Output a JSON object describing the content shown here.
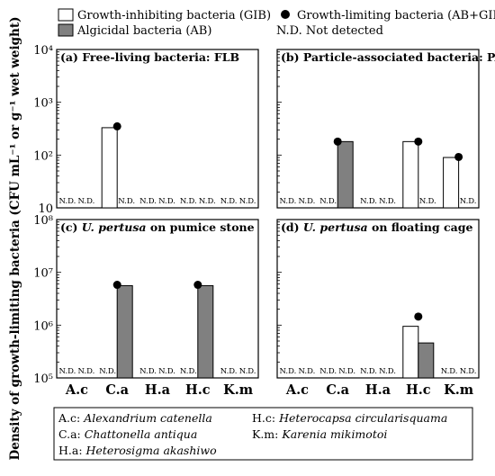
{
  "legend": {
    "gib_label": "Growth-inhibiting bacteria (GIB)",
    "ab_label": "Algicidal bacteria (AB)",
    "glb_label": "Growth-limiting bacteria (AB+GIB)",
    "nd_label": "N.D.  Not detected",
    "colors": {
      "gib": "#ffffff",
      "ab": "#808080",
      "dot": "#000000"
    }
  },
  "ylabel": "Density of growth-limiting bacteria (CFU mL⁻¹ or g⁻¹ wet weight)",
  "nd_text": "N.D.",
  "categories": [
    "A.c",
    "C.a",
    "H.a",
    "H.c",
    "K.m"
  ],
  "species_key": [
    {
      "abbr": "A.c:",
      "name": "Alexandrium catenella"
    },
    {
      "abbr": "H.c:",
      "name": "Heterocapsa circularisquama"
    },
    {
      "abbr": "C.a:",
      "name": "Chattonella antiqua"
    },
    {
      "abbr": "K.m:",
      "name": "Karenia mikimotoi"
    },
    {
      "abbr": "H.a:",
      "name": "Heterosigma akashiwo"
    }
  ],
  "chart_data": [
    {
      "type": "bar",
      "title_prefix": "(a) Free-living bacteria: FLB",
      "title_italic": "",
      "title_suffix": "",
      "yscale": "log",
      "ylim": [
        10,
        10000
      ],
      "yticks": [
        {
          "value": 10,
          "label": "10"
        },
        {
          "value": 100,
          "label": "10²"
        },
        {
          "value": 1000,
          "label": "10³"
        },
        {
          "value": 10000,
          "label": "10⁴"
        }
      ],
      "series": [
        {
          "name": "Growth-inhibiting bacteria (GIB)",
          "values": [
            null,
            330,
            null,
            null,
            null
          ]
        },
        {
          "name": "Algicidal bacteria (AB)",
          "values": [
            null,
            null,
            null,
            null,
            null
          ]
        },
        {
          "name": "Growth-limiting bacteria (AB+GIB)",
          "values": [
            null,
            350,
            null,
            null,
            null
          ]
        }
      ],
      "nd": [
        [
          true,
          true
        ],
        [
          false,
          true
        ],
        [
          true,
          true
        ],
        [
          true,
          true
        ],
        [
          true,
          true
        ]
      ]
    },
    {
      "type": "bar",
      "title_prefix": "(b) Particle-associated bacteria: PAB",
      "title_italic": "",
      "title_suffix": "",
      "yscale": "log",
      "ylim": [
        10,
        10000
      ],
      "yticks": [],
      "series": [
        {
          "name": "Growth-inhibiting bacteria (GIB)",
          "values": [
            null,
            null,
            null,
            180,
            90
          ]
        },
        {
          "name": "Algicidal bacteria (AB)",
          "values": [
            null,
            180,
            null,
            null,
            null
          ]
        },
        {
          "name": "Growth-limiting bacteria (AB+GIB)",
          "values": [
            null,
            180,
            null,
            180,
            92
          ]
        }
      ],
      "nd": [
        [
          true,
          true
        ],
        [
          true,
          false
        ],
        [
          true,
          true
        ],
        [
          false,
          true
        ],
        [
          false,
          true
        ]
      ]
    },
    {
      "type": "bar",
      "title_prefix": "(c) ",
      "title_italic": "U. pertusa",
      "title_suffix": " on pumice stone",
      "yscale": "log",
      "ylim": [
        100000,
        100000000
      ],
      "yticks": [
        {
          "value": 100000,
          "label": "10⁵"
        },
        {
          "value": 1000000,
          "label": "10⁶"
        },
        {
          "value": 10000000,
          "label": "10⁷"
        },
        {
          "value": 100000000,
          "label": "10⁸"
        }
      ],
      "series": [
        {
          "name": "Growth-inhibiting bacteria (GIB)",
          "values": [
            null,
            null,
            null,
            null,
            null
          ]
        },
        {
          "name": "Algicidal bacteria (AB)",
          "values": [
            null,
            5600000,
            null,
            5600000,
            null
          ]
        },
        {
          "name": "Growth-limiting bacteria (AB+GIB)",
          "values": [
            null,
            5800000,
            null,
            5800000,
            null
          ]
        }
      ],
      "nd": [
        [
          true,
          true
        ],
        [
          true,
          false
        ],
        [
          true,
          true
        ],
        [
          true,
          false
        ],
        [
          true,
          true
        ]
      ]
    },
    {
      "type": "bar",
      "title_prefix": "(d) ",
      "title_italic": "U. pertusa",
      "title_suffix": " on floating cage",
      "yscale": "log",
      "ylim": [
        100000,
        100000000
      ],
      "yticks": [],
      "series": [
        {
          "name": "Growth-inhibiting bacteria (GIB)",
          "values": [
            null,
            null,
            null,
            950000,
            null
          ]
        },
        {
          "name": "Algicidal bacteria (AB)",
          "values": [
            null,
            null,
            null,
            460000,
            null
          ]
        },
        {
          "name": "Growth-limiting bacteria (AB+GIB)",
          "values": [
            null,
            null,
            null,
            1450000,
            null
          ]
        }
      ],
      "nd": [
        [
          true,
          true
        ],
        [
          true,
          true
        ],
        [
          true,
          true
        ],
        [
          false,
          false
        ],
        [
          true,
          true
        ]
      ]
    }
  ]
}
